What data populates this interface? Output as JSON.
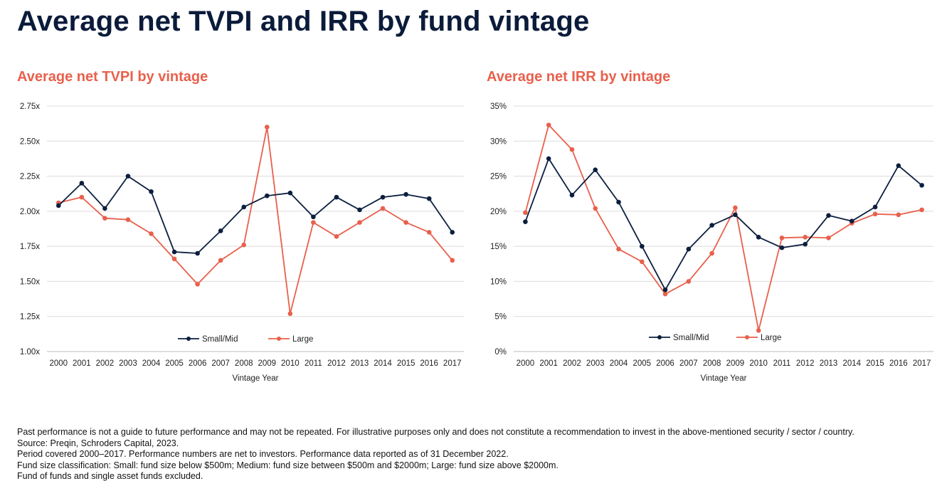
{
  "title": "Average net TVPI and IRR by fund vintage",
  "colors": {
    "small_mid": "#0b1f3f",
    "large": "#e8604c",
    "grid": "#dcdcdc",
    "title_accent": "#e8604c",
    "main_title": "#0b1b3a"
  },
  "chart_data": [
    {
      "type": "line",
      "title": "Average net TVPI by vintage",
      "xlabel": "Vintage Year",
      "ylabel": "",
      "categories": [
        "2000",
        "2001",
        "2002",
        "2003",
        "2004",
        "2005",
        "2006",
        "2007",
        "2008",
        "2009",
        "2010",
        "2011",
        "2012",
        "2013",
        "2014",
        "2015",
        "2016",
        "2017"
      ],
      "ylim": [
        1.0,
        2.75
      ],
      "yticks": [
        1.0,
        1.25,
        1.5,
        1.75,
        2.0,
        2.25,
        2.5,
        2.75
      ],
      "ytick_labels": [
        "1.00x",
        "1.25x",
        "1.50x",
        "1.75x",
        "2.00x",
        "2.25x",
        "2.50x",
        "2.75x"
      ],
      "grid": true,
      "legend_position": "bottom",
      "series": [
        {
          "name": "Small/Mid",
          "color": "#0b1f3f",
          "values": [
            2.04,
            2.2,
            2.02,
            2.25,
            2.14,
            1.71,
            1.7,
            1.86,
            2.03,
            2.11,
            2.13,
            1.96,
            2.1,
            2.01,
            2.1,
            2.12,
            2.09,
            1.85
          ]
        },
        {
          "name": "Large",
          "color": "#e8604c",
          "values": [
            2.06,
            2.1,
            1.95,
            1.94,
            1.84,
            1.66,
            1.48,
            1.65,
            1.76,
            2.6,
            1.27,
            1.92,
            1.82,
            1.92,
            2.02,
            1.92,
            1.85,
            1.65
          ]
        }
      ]
    },
    {
      "type": "line",
      "title": "Average net IRR by vintage",
      "xlabel": "Vintage Year",
      "ylabel": "",
      "categories": [
        "2000",
        "2001",
        "2002",
        "2003",
        "2004",
        "2005",
        "2006",
        "2007",
        "2008",
        "2009",
        "2010",
        "2011",
        "2012",
        "2013",
        "2014",
        "2015",
        "2016",
        "2017"
      ],
      "ylim": [
        0,
        35
      ],
      "yticks": [
        0,
        5,
        10,
        15,
        20,
        25,
        30,
        35
      ],
      "ytick_labels": [
        "0%",
        "5%",
        "10%",
        "15%",
        "20%",
        "25%",
        "30%",
        "35%"
      ],
      "grid": true,
      "legend_position": "bottom",
      "series": [
        {
          "name": "Small/Mid",
          "color": "#0b1f3f",
          "values": [
            18.5,
            27.5,
            22.3,
            25.9,
            21.3,
            15.0,
            8.8,
            14.6,
            18.0,
            19.5,
            16.3,
            14.8,
            15.3,
            19.4,
            18.6,
            20.6,
            26.5,
            23.7
          ]
        },
        {
          "name": "Large",
          "color": "#e8604c",
          "values": [
            19.8,
            32.3,
            28.8,
            20.4,
            14.6,
            12.8,
            8.2,
            10.0,
            14.0,
            20.5,
            3.0,
            16.2,
            16.3,
            16.2,
            18.3,
            19.6,
            19.5,
            20.2
          ]
        }
      ]
    }
  ],
  "footnotes": [
    "Past performance is not a guide to future performance and may not be repeated. For illustrative purposes only and does not constitute a recommendation to invest in the above-mentioned security / sector / country.",
    "Source: Preqin, Schroders Capital, 2023.",
    "Period covered 2000–2017. Performance numbers are net to investors. Performance data reported as of 31 December 2022.",
    "Fund size classification: Small: fund size below $500m; Medium: fund size between $500m and $2000m; Large: fund size above $2000m.",
    "Fund of funds and single asset funds excluded."
  ]
}
